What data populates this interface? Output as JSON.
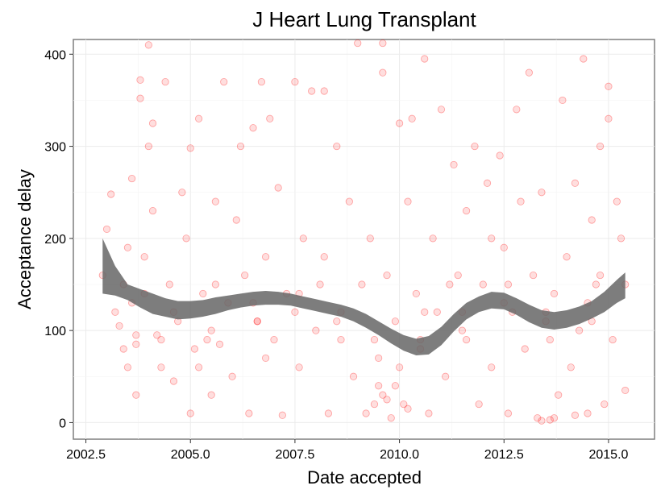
{
  "chart_data": {
    "type": "scatter",
    "title": "J Heart Lung Transplant",
    "xlabel": "Date accepted",
    "ylabel": "Acceptance delay",
    "xlim": [
      2002.2,
      2016.1
    ],
    "ylim": [
      -18,
      416
    ],
    "x_ticks": [
      2002.5,
      2005.0,
      2007.5,
      2010.0,
      2012.5,
      2015.0
    ],
    "x_tick_labels": [
      "2002.5",
      "2005.0",
      "2007.5",
      "2010.0",
      "2012.5",
      "2015.0"
    ],
    "y_ticks": [
      0,
      100,
      200,
      300,
      400
    ],
    "y_tick_labels": [
      "0",
      "100",
      "200",
      "300",
      "400"
    ],
    "grid": true,
    "point_color": "#ff0000",
    "band_color": "#666666",
    "points": [
      [
        2002.9,
        160
      ],
      [
        2003.0,
        210
      ],
      [
        2003.1,
        248
      ],
      [
        2003.2,
        120
      ],
      [
        2003.3,
        105
      ],
      [
        2003.4,
        150
      ],
      [
        2003.5,
        60
      ],
      [
        2003.5,
        190
      ],
      [
        2003.6,
        265
      ],
      [
        2003.7,
        30
      ],
      [
        2003.7,
        85
      ],
      [
        2003.8,
        372
      ],
      [
        2003.8,
        352
      ],
      [
        2003.9,
        180
      ],
      [
        2003.9,
        140
      ],
      [
        2004.0,
        410
      ],
      [
        2004.0,
        300
      ],
      [
        2004.1,
        325
      ],
      [
        2004.1,
        230
      ],
      [
        2004.2,
        95
      ],
      [
        2004.3,
        60
      ],
      [
        2004.4,
        370
      ],
      [
        2004.5,
        150
      ],
      [
        2004.6,
        45
      ],
      [
        2004.7,
        110
      ],
      [
        2004.8,
        250
      ],
      [
        2004.9,
        200
      ],
      [
        2005.0,
        298
      ],
      [
        2005.0,
        10
      ],
      [
        2005.1,
        80
      ],
      [
        2005.2,
        330
      ],
      [
        2005.3,
        140
      ],
      [
        2005.4,
        90
      ],
      [
        2005.5,
        30
      ],
      [
        2005.6,
        240
      ],
      [
        2005.7,
        85
      ],
      [
        2005.8,
        370
      ],
      [
        2005.9,
        130
      ],
      [
        2006.0,
        50
      ],
      [
        2006.1,
        220
      ],
      [
        2006.2,
        300
      ],
      [
        2006.3,
        160
      ],
      [
        2006.4,
        10
      ],
      [
        2006.5,
        320
      ],
      [
        2006.6,
        110
      ],
      [
        2006.7,
        370
      ],
      [
        2006.8,
        180
      ],
      [
        2006.9,
        330
      ],
      [
        2007.0,
        90
      ],
      [
        2007.1,
        255
      ],
      [
        2007.2,
        8
      ],
      [
        2007.3,
        140
      ],
      [
        2007.5,
        370
      ],
      [
        2007.6,
        60
      ],
      [
        2007.7,
        200
      ],
      [
        2007.9,
        360
      ],
      [
        2008.0,
        100
      ],
      [
        2008.1,
        150
      ],
      [
        2008.2,
        360
      ],
      [
        2008.3,
        10
      ],
      [
        2008.5,
        300
      ],
      [
        2008.6,
        120
      ],
      [
        2008.8,
        240
      ],
      [
        2008.9,
        50
      ],
      [
        2009.0,
        412
      ],
      [
        2009.1,
        150
      ],
      [
        2009.2,
        10
      ],
      [
        2009.3,
        200
      ],
      [
        2009.4,
        90
      ],
      [
        2009.5,
        40
      ],
      [
        2009.6,
        380
      ],
      [
        2009.6,
        412
      ],
      [
        2009.7,
        160
      ],
      [
        2009.8,
        5
      ],
      [
        2009.9,
        110
      ],
      [
        2010.0,
        325
      ],
      [
        2010.0,
        60
      ],
      [
        2010.1,
        20
      ],
      [
        2010.2,
        240
      ],
      [
        2010.3,
        330
      ],
      [
        2010.4,
        140
      ],
      [
        2010.5,
        80
      ],
      [
        2010.6,
        395
      ],
      [
        2010.7,
        10
      ],
      [
        2010.8,
        200
      ],
      [
        2010.9,
        120
      ],
      [
        2011.0,
        340
      ],
      [
        2011.1,
        50
      ],
      [
        2011.3,
        280
      ],
      [
        2011.4,
        160
      ],
      [
        2011.5,
        100
      ],
      [
        2011.6,
        230
      ],
      [
        2011.8,
        300
      ],
      [
        2011.9,
        20
      ],
      [
        2012.0,
        150
      ],
      [
        2012.1,
        260
      ],
      [
        2012.2,
        60
      ],
      [
        2012.4,
        290
      ],
      [
        2012.5,
        190
      ],
      [
        2012.6,
        10
      ],
      [
        2012.7,
        120
      ],
      [
        2012.8,
        340
      ],
      [
        2012.9,
        240
      ],
      [
        2013.0,
        80
      ],
      [
        2013.1,
        380
      ],
      [
        2013.2,
        160
      ],
      [
        2013.3,
        5
      ],
      [
        2013.4,
        250
      ],
      [
        2013.5,
        110
      ],
      [
        2013.6,
        3
      ],
      [
        2013.7,
        140
      ],
      [
        2013.8,
        30
      ],
      [
        2013.9,
        350
      ],
      [
        2014.0,
        180
      ],
      [
        2014.1,
        60
      ],
      [
        2014.2,
        260
      ],
      [
        2014.3,
        100
      ],
      [
        2014.4,
        395
      ],
      [
        2014.5,
        10
      ],
      [
        2014.6,
        220
      ],
      [
        2014.7,
        150
      ],
      [
        2014.8,
        300
      ],
      [
        2014.9,
        20
      ],
      [
        2015.0,
        365
      ],
      [
        2015.0,
        330
      ],
      [
        2015.1,
        90
      ],
      [
        2015.2,
        240
      ],
      [
        2015.3,
        200
      ],
      [
        2015.4,
        35
      ],
      [
        2015.4,
        150
      ],
      [
        2003.4,
        80
      ],
      [
        2004.3,
        90
      ],
      [
        2005.5,
        100
      ],
      [
        2006.5,
        130
      ],
      [
        2007.5,
        120
      ],
      [
        2008.5,
        110
      ],
      [
        2009.5,
        70
      ],
      [
        2010.5,
        90
      ],
      [
        2011.5,
        120
      ],
      [
        2012.5,
        130
      ],
      [
        2013.5,
        120
      ],
      [
        2014.5,
        130
      ],
      [
        2003.6,
        130
      ],
      [
        2004.6,
        120
      ],
      [
        2005.6,
        150
      ],
      [
        2006.6,
        110
      ],
      [
        2007.6,
        140
      ],
      [
        2008.6,
        90
      ],
      [
        2009.6,
        30
      ],
      [
        2010.6,
        120
      ],
      [
        2011.6,
        90
      ],
      [
        2012.6,
        150
      ],
      [
        2013.6,
        90
      ],
      [
        2014.6,
        110
      ],
      [
        2009.4,
        20
      ],
      [
        2009.7,
        25
      ],
      [
        2009.9,
        40
      ],
      [
        2010.2,
        15
      ],
      [
        2013.4,
        2
      ],
      [
        2013.7,
        5
      ],
      [
        2014.2,
        8
      ],
      [
        2003.7,
        95
      ],
      [
        2005.2,
        60
      ],
      [
        2006.8,
        70
      ],
      [
        2008.2,
        180
      ],
      [
        2011.2,
        150
      ],
      [
        2012.2,
        200
      ],
      [
        2014.8,
        160
      ]
    ],
    "smooth_band": [
      [
        2002.9,
        140,
        200
      ],
      [
        2003.2,
        138,
        170
      ],
      [
        2003.5,
        133,
        150
      ],
      [
        2003.8,
        125,
        145
      ],
      [
        2004.1,
        118,
        140
      ],
      [
        2004.4,
        115,
        135
      ],
      [
        2004.7,
        112,
        132
      ],
      [
        2005.0,
        113,
        132
      ],
      [
        2005.3,
        115,
        133
      ],
      [
        2005.6,
        118,
        136
      ],
      [
        2005.9,
        122,
        138
      ],
      [
        2006.2,
        125,
        140
      ],
      [
        2006.5,
        127,
        142
      ],
      [
        2006.8,
        128,
        143
      ],
      [
        2007.1,
        128,
        142
      ],
      [
        2007.4,
        127,
        140
      ],
      [
        2007.7,
        124,
        137
      ],
      [
        2008.0,
        121,
        134
      ],
      [
        2008.3,
        118,
        131
      ],
      [
        2008.6,
        115,
        128
      ],
      [
        2008.9,
        110,
        124
      ],
      [
        2009.2,
        103,
        118
      ],
      [
        2009.5,
        95,
        110
      ],
      [
        2009.8,
        86,
        102
      ],
      [
        2010.1,
        78,
        95
      ],
      [
        2010.4,
        73,
        91
      ],
      [
        2010.7,
        74,
        94
      ],
      [
        2011.0,
        84,
        104
      ],
      [
        2011.3,
        99,
        118
      ],
      [
        2011.6,
        112,
        130
      ],
      [
        2011.9,
        120,
        137
      ],
      [
        2012.2,
        124,
        142
      ],
      [
        2012.5,
        123,
        141
      ],
      [
        2012.8,
        117,
        135
      ],
      [
        2013.1,
        109,
        128
      ],
      [
        2013.4,
        103,
        122
      ],
      [
        2013.7,
        101,
        120
      ],
      [
        2014.0,
        103,
        122
      ],
      [
        2014.3,
        107,
        126
      ],
      [
        2014.6,
        113,
        132
      ],
      [
        2014.9,
        120,
        142
      ],
      [
        2015.2,
        130,
        155
      ],
      [
        2015.4,
        135,
        163
      ]
    ]
  }
}
